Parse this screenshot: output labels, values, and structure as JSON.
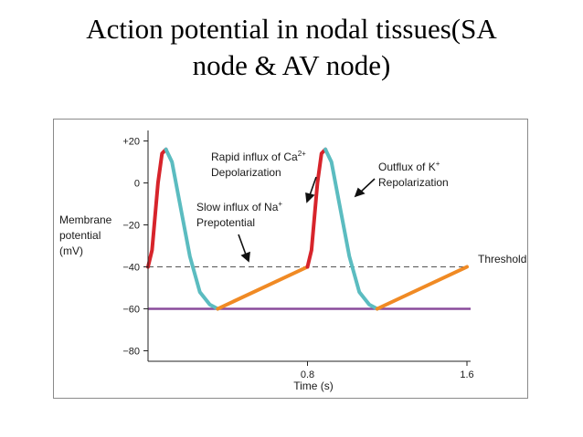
{
  "slide": {
    "title_line1": "Action potential in nodal tissues(SA",
    "title_line2": "node & AV node)"
  },
  "chart_data": {
    "type": "line",
    "xlabel": "Time (s)",
    "ylabel_lines": [
      "Membrane",
      "potential",
      "(mV)"
    ],
    "xlim": [
      0,
      1.6
    ],
    "ylim": [
      -85,
      25
    ],
    "y_ticks": [
      {
        "value": 20,
        "label": "+20"
      },
      {
        "value": 0,
        "label": "0"
      },
      {
        "value": -20,
        "label": "−20"
      },
      {
        "value": -40,
        "label": "−40"
      },
      {
        "value": -60,
        "label": "−60"
      },
      {
        "value": -80,
        "label": "−80"
      }
    ],
    "x_ticks": [
      {
        "value": 0.8,
        "label": "0.8"
      },
      {
        "value": 1.6,
        "label": "1.6"
      }
    ],
    "threshold": {
      "value": -40,
      "label": "Threshold"
    },
    "resting_line": {
      "value": -60
    },
    "colors": {
      "depolarization": "#d7242b",
      "repolarization": "#5bbcc0",
      "prepotential": "#f08a24",
      "resting": "#8a4b9c",
      "threshold": "#555555"
    },
    "series": [
      {
        "phase": "depolarization",
        "points": [
          [
            0.0,
            -40
          ],
          [
            0.02,
            -32
          ],
          [
            0.05,
            0
          ],
          [
            0.07,
            14
          ],
          [
            0.09,
            16
          ]
        ]
      },
      {
        "phase": "repolarization",
        "points": [
          [
            0.09,
            16
          ],
          [
            0.12,
            10
          ],
          [
            0.16,
            -10
          ],
          [
            0.21,
            -35
          ],
          [
            0.26,
            -52
          ],
          [
            0.31,
            -58
          ],
          [
            0.35,
            -60
          ]
        ]
      },
      {
        "phase": "prepotential",
        "points": [
          [
            0.35,
            -60
          ],
          [
            0.8,
            -40
          ]
        ]
      },
      {
        "phase": "depolarization",
        "points": [
          [
            0.8,
            -40
          ],
          [
            0.82,
            -32
          ],
          [
            0.85,
            0
          ],
          [
            0.87,
            14
          ],
          [
            0.89,
            16
          ]
        ]
      },
      {
        "phase": "repolarization",
        "points": [
          [
            0.89,
            16
          ],
          [
            0.92,
            10
          ],
          [
            0.96,
            -10
          ],
          [
            1.01,
            -35
          ],
          [
            1.06,
            -52
          ],
          [
            1.11,
            -58
          ],
          [
            1.15,
            -60
          ]
        ]
      },
      {
        "phase": "prepotential",
        "points": [
          [
            1.15,
            -60
          ],
          [
            1.6,
            -40
          ]
        ]
      }
    ],
    "annotations": [
      {
        "lines": [
          "Rapid influx of Ca",
          "Depolarization"
        ],
        "sup": "2+"
      },
      {
        "lines": [
          "Outflux of K",
          "Repolarization"
        ],
        "sup": "+"
      },
      {
        "lines": [
          "Slow influx of Na",
          "Prepotential"
        ],
        "sup": "+"
      }
    ]
  }
}
